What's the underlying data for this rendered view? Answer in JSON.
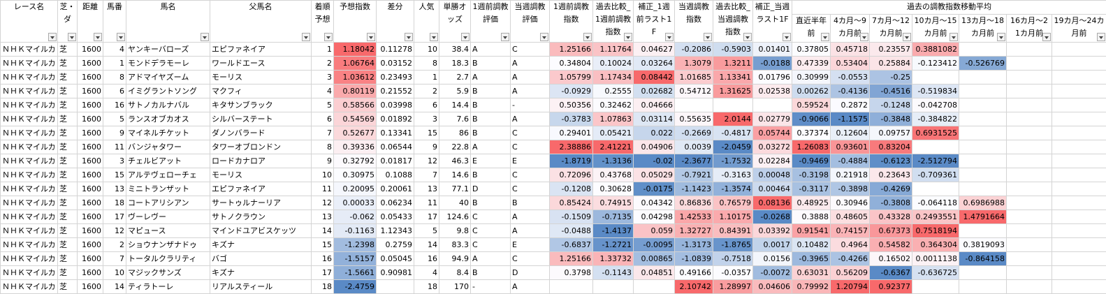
{
  "table": {
    "group_header": "過去の調教指数移動平均",
    "columns": [
      "レース名",
      "芝・ダ",
      "距離",
      "馬番",
      "馬名",
      "父馬名",
      "着順予想",
      "予想指数",
      "差分",
      "人気",
      "単勝オッズ",
      "1週前調教評価",
      "当週調教評価",
      "1週前調教指数",
      "過去比較_1週前調教指数",
      "補正_1週前ラスト1F",
      "当週調教指数",
      "過去比較_当週調教指数",
      "補正_当週ラスト1F",
      "直近半年前",
      "4カ月～9カ月前",
      "7カ月～12カ月前",
      "10カ月～15カ月前",
      "13カ月～18カ月前",
      "16カ月～21カ月前",
      "19カ月～24カ月前"
    ],
    "rows": [
      [
        "ＮＨＫマイルカ",
        "芝",
        1600,
        4,
        "ヤンキーバローズ",
        "エピファネイア",
        1,
        1.18042,
        0.11278,
        10,
        38.4,
        "A",
        "C",
        1.25166,
        1.11764,
        0.04627,
        -0.2086,
        -0.5903,
        0.01401,
        0.37805,
        0.45718,
        0.23557,
        0.3881082,
        null,
        null,
        null
      ],
      [
        "ＮＨＫマイルカ",
        "芝",
        1600,
        1,
        "モンドデラモーレ",
        "ワールドエース",
        2,
        1.06764,
        0.03152,
        8,
        18.3,
        "B",
        "A",
        0.34804,
        0.10024,
        0.03264,
        1.3079,
        1.3211,
        -0.0188,
        0.47339,
        0.53404,
        0.25884,
        -0.123412,
        -0.526769,
        null,
        null
      ],
      [
        "ＮＨＫマイルカ",
        "芝",
        1600,
        8,
        "アドマイヤズーム",
        "モーリス",
        3,
        1.03612,
        0.23493,
        1,
        2.7,
        "A",
        "A",
        1.05799,
        1.17434,
        0.08442,
        1.01685,
        1.13341,
        0.01796,
        0.30999,
        -0.0553,
        -0.25,
        null,
        null,
        null,
        null
      ],
      [
        "ＮＨＫマイルカ",
        "芝",
        1600,
        6,
        "イミグラントソング",
        "マクフィ",
        4,
        0.80119,
        0.21552,
        2,
        5.9,
        "B",
        "A",
        -0.0929,
        0.2555,
        0.02682,
        0.54712,
        1.31625,
        0.02538,
        0.00262,
        -0.4136,
        -0.4516,
        -0.519834,
        null,
        null,
        null
      ],
      [
        "ＮＨＫマイルカ",
        "芝",
        1600,
        16,
        "サトノカルナバル",
        "キタサンブラック",
        5,
        0.58566,
        0.03998,
        6,
        14.4,
        "B",
        "-",
        0.50356,
        0.32462,
        0.04666,
        null,
        null,
        null,
        0.59524,
        0.2872,
        -0.1248,
        -0.042708,
        null,
        null,
        null
      ],
      [
        "ＮＨＫマイルカ",
        "芝",
        1600,
        5,
        "ランスオブカオス",
        "シルバーステート",
        6,
        0.54569,
        0.01892,
        3,
        7.6,
        "B",
        "A",
        -0.3783,
        1.07863,
        0.03114,
        0.55635,
        2.0144,
        0.02779,
        -0.9066,
        -1.1575,
        -0.3848,
        -0.384822,
        null,
        null,
        null
      ],
      [
        "ＮＨＫマイルカ",
        "芝",
        1600,
        9,
        "マイネルチケット",
        "ダノンバラード",
        7,
        0.52677,
        0.13341,
        15,
        86,
        "B",
        "C",
        0.29401,
        0.05421,
        0.022,
        -0.2669,
        -0.4817,
        0.05744,
        0.37374,
        0.12604,
        0.09757,
        0.6931525,
        null,
        null,
        null
      ],
      [
        "ＮＨＫマイルカ",
        "芝",
        1600,
        11,
        "バンジャタワー",
        "タワーオブロンドン",
        8,
        0.39336,
        0.06544,
        9,
        22.8,
        "A",
        "C",
        2.38886,
        2.41221,
        0.04906,
        0.0039,
        -2.0459,
        0.03272,
        1.26083,
        0.93601,
        0.83204,
        null,
        null,
        null,
        null
      ],
      [
        "ＮＨＫマイルカ",
        "芝",
        1600,
        3,
        "チェルビアット",
        "ロードカナロア",
        9,
        0.32792,
        0.01817,
        12,
        46.3,
        "E",
        "E",
        -1.8719,
        -1.3136,
        -0.02,
        -2.3677,
        -1.7532,
        0.02284,
        -0.9469,
        -0.4884,
        -0.6123,
        -2.512794,
        null,
        null,
        null
      ],
      [
        "ＮＨＫマイルカ",
        "芝",
        1600,
        15,
        "アルテヴェローチェ",
        "モーリス",
        10,
        0.30975,
        0.1088,
        7,
        14.6,
        "B",
        "C",
        0.72096,
        0.43768,
        0.05029,
        -0.7921,
        -0.3163,
        0.00048,
        -0.3198,
        0.21918,
        0.23643,
        -0.709361,
        null,
        null,
        null
      ],
      [
        "ＮＨＫマイルカ",
        "芝",
        1600,
        13,
        "ミニトランザット",
        "エピファネイア",
        11,
        0.20095,
        0.20061,
        13,
        77.1,
        "D",
        "C",
        -0.1208,
        0.30628,
        -0.0175,
        -1.1423,
        -1.3574,
        0.00464,
        -0.3117,
        -0.3898,
        -0.4269,
        null,
        null,
        null,
        null
      ],
      [
        "ＮＨＫマイルカ",
        "芝",
        1600,
        18,
        "コートアリシアン",
        "サートゥルナーリア",
        12,
        0.00033,
        0.06234,
        11,
        40,
        "B",
        "B",
        0.85424,
        0.74915,
        0.04342,
        0.86836,
        0.76579,
        0.08136,
        0.48925,
        0.30946,
        -0.3808,
        -0.064118,
        0.6986988,
        null,
        null
      ],
      [
        "ＮＨＫマイルカ",
        "芝",
        1600,
        17,
        "ヴーレヴー",
        "サトノクラウン",
        13,
        -0.062,
        0.05433,
        17,
        124.6,
        "C",
        "A",
        -0.1509,
        -0.7135,
        0.04298,
        1.42533,
        1.10175,
        -0.0268,
        0.3888,
        0.48605,
        0.43328,
        0.2493551,
        1.4791664,
        null,
        null
      ],
      [
        "ＮＨＫマイルカ",
        "芝",
        1600,
        12,
        "マピュース",
        "マインドユアビスケッツ",
        14,
        -0.1163,
        1.12343,
        5,
        9.8,
        "C",
        "A",
        -0.0488,
        -1.4137,
        0.059,
        1.32727,
        0.84391,
        0.03392,
        0.91541,
        0.74157,
        0.67373,
        0.7518194,
        null,
        null,
        null
      ],
      [
        "ＮＨＫマイルカ",
        "芝",
        1600,
        2,
        "ショウナンザナドゥ",
        "キズナ",
        15,
        -1.2398,
        0.2759,
        14,
        83.3,
        "C",
        "E",
        -0.6837,
        -1.2721,
        -0.0095,
        -1.3173,
        -1.8765,
        0.0017,
        0.10482,
        0.4964,
        0.54582,
        0.364304,
        0.3819093,
        null,
        null
      ],
      [
        "ＮＨＫマイルカ",
        "芝",
        1600,
        7,
        "トータルクラリティ",
        "バゴ",
        16,
        -1.5157,
        0.05045,
        16,
        94.9,
        "A",
        "C",
        1.25166,
        1.33732,
        0.00865,
        -1.0839,
        -0.7518,
        0.0156,
        -0.3965,
        -0.4266,
        0.16502,
        0.0011138,
        -0.864158,
        null,
        null
      ],
      [
        "ＮＨＫマイルカ",
        "芝",
        1600,
        10,
        "マジックサンズ",
        "キズナ",
        17,
        -1.5661,
        0.90981,
        4,
        8.4,
        "B",
        "D",
        0.3798,
        -0.1143,
        0.04851,
        0.49166,
        -0.0357,
        -0.0072,
        0.63031,
        0.56209,
        -0.6367,
        -0.636725,
        null,
        null,
        null
      ],
      [
        "ＮＨＫマイルカ",
        "芝",
        1600,
        14,
        "ティラトーレ",
        "リアルスティール",
        18,
        -2.4759,
        null,
        18,
        170,
        "-",
        "A",
        null,
        null,
        null,
        2.10742,
        1.28997,
        0.04606,
        0.79992,
        1.20794,
        0.92377,
        null,
        null,
        null,
        null
      ]
    ]
  }
}
